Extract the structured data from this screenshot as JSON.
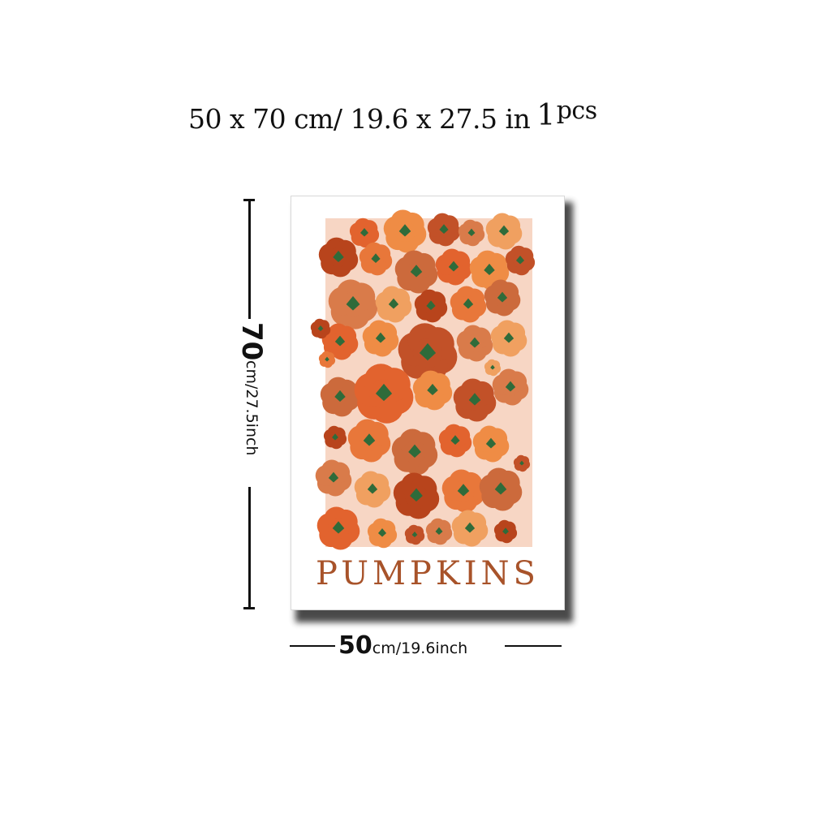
{
  "headline": {
    "size_cm": "50 x 70 cm/",
    "size_in": "19.6 x 27.5 in",
    "quantity_num": "1",
    "quantity_unit": "pcs"
  },
  "poster": {
    "title": "PUMPKINS",
    "background_color": "#f7d6c4",
    "title_color": "#a8532a",
    "pumpkin_colors": [
      "#e2632e",
      "#ef8c45",
      "#c25128",
      "#d97b4a",
      "#f0a060",
      "#b8441c",
      "#e8773a",
      "#cc6a3c"
    ],
    "stem_color": "#2f6b3a"
  },
  "dimensions": {
    "height_num": "70",
    "height_unit": "cm/27.5inch",
    "width_num": "50",
    "width_unit": "cm/19.6inch"
  }
}
